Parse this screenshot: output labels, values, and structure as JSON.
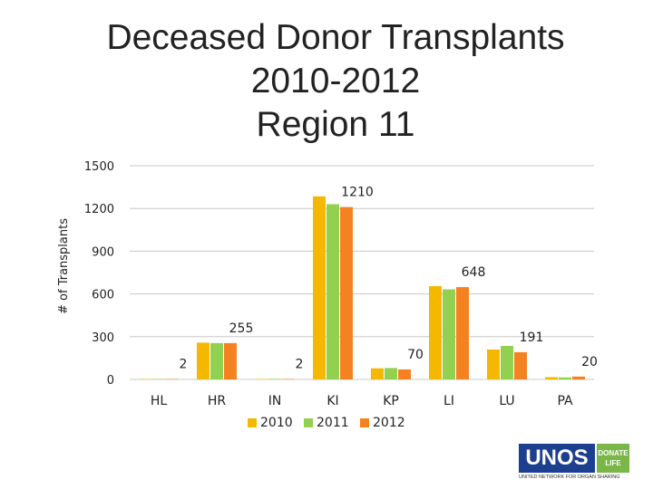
{
  "slide": {
    "title_lines": [
      "Deceased Donor Transplants",
      "2010-2012",
      "Region 11"
    ]
  },
  "logo": {
    "name": "UNOS",
    "badge_line1": "DONATE",
    "badge_line2": "LIFE",
    "tagline": "UNITED NETWORK FOR ORGAN SHARING"
  },
  "colors": {
    "series_2010": "#f5b800",
    "series_2011": "#92d050",
    "series_2012": "#f58220",
    "grid": "#c8c8c8",
    "text": "#222222"
  },
  "chart_data": {
    "type": "bar",
    "title": "",
    "xlabel": "",
    "ylabel": "# of Transplants",
    "ylim": [
      0,
      1500
    ],
    "yticks": [
      0,
      300,
      600,
      900,
      1200,
      1500
    ],
    "categories": [
      "HL",
      "HR",
      "IN",
      "KI",
      "KP",
      "LI",
      "LU",
      "PA"
    ],
    "series": [
      {
        "name": "2010",
        "values": [
          2,
          258,
          3,
          1285,
          78,
          655,
          210,
          16
        ]
      },
      {
        "name": "2011",
        "values": [
          3,
          255,
          4,
          1230,
          80,
          632,
          235,
          14
        ]
      },
      {
        "name": "2012",
        "values": [
          2,
          255,
          2,
          1210,
          70,
          648,
          191,
          20
        ]
      }
    ],
    "data_labels": [
      {
        "category": "HL",
        "series": "2012",
        "text": "2"
      },
      {
        "category": "HR",
        "series": "2012",
        "text": "255"
      },
      {
        "category": "IN",
        "series": "2012",
        "text": "2"
      },
      {
        "category": "KI",
        "series": "2012",
        "text": "1210"
      },
      {
        "category": "KP",
        "series": "2012",
        "text": "70"
      },
      {
        "category": "LI",
        "series": "2012",
        "text": "648"
      },
      {
        "category": "LU",
        "series": "2012",
        "text": "191"
      },
      {
        "category": "PA",
        "series": "2012",
        "text": "20"
      }
    ],
    "legend_position": "bottom"
  }
}
